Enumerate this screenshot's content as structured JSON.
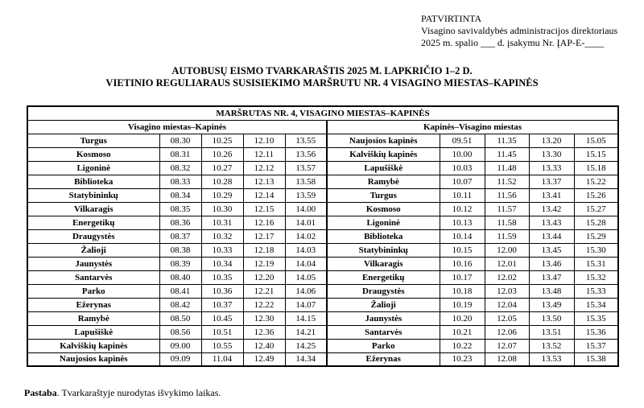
{
  "colors": {
    "text": "#000000",
    "background": "#ffffff",
    "border": "#000000"
  },
  "approval": {
    "line1": "PATVIRTINTA",
    "line2": "Visagino savivaldybės administracijos direktoriaus",
    "line3": "2025 m. spalio ___ d. įsakymu Nr. ĮAP-E-____"
  },
  "title": {
    "line1": "AUTOBUSŲ EISMO TVARKARAŠTIS 2025 M. LAPKRIČIO 1–2 D.",
    "line2": "VIETINIO REGULIARAUS SUSISIEKIMO MARŠRUTU NR. 4 VISAGINO MIESTAS–KAPINĖS"
  },
  "table": {
    "header": "MARŠRUTAS NR. 4, VISAGINO MIESTAS–KAPINĖS",
    "left_direction": "Visagino miestas–Kapinės",
    "right_direction": "Kapinės–Visagino miestas",
    "rows": [
      {
        "left_stop": "Turgus",
        "left_times": [
          "08.30",
          "10.25",
          "12.10",
          "13.55"
        ],
        "right_stop": "Naujosios kapinės",
        "right_times": [
          "09.51",
          "11.35",
          "13.20",
          "15.05"
        ]
      },
      {
        "left_stop": "Kosmoso",
        "left_times": [
          "08.31",
          "10.26",
          "12.11",
          "13.56"
        ],
        "right_stop": "Kalviškių kapinės",
        "right_times": [
          "10.00",
          "11.45",
          "13.30",
          "15.15"
        ]
      },
      {
        "left_stop": "Ligoninė",
        "left_times": [
          "08.32",
          "10.27",
          "12.12",
          "13.57"
        ],
        "right_stop": "Lapušiškė",
        "right_times": [
          "10.03",
          "11.48",
          "13.33",
          "15.18"
        ]
      },
      {
        "left_stop": "Biblioteka",
        "left_times": [
          "08.33",
          "10.28",
          "12.13",
          "13.58"
        ],
        "right_stop": "Ramybė",
        "right_times": [
          "10.07",
          "11.52",
          "13.37",
          "15.22"
        ]
      },
      {
        "left_stop": "Statybininkų",
        "left_times": [
          "08.34",
          "10.29",
          "12.14",
          "13.59"
        ],
        "right_stop": "Turgus",
        "right_times": [
          "10.11",
          "11.56",
          "13.41",
          "15.26"
        ]
      },
      {
        "left_stop": "Vilkaragis",
        "left_times": [
          "08.35",
          "10.30",
          "12.15",
          "14.00"
        ],
        "right_stop": "Kosmoso",
        "right_times": [
          "10.12",
          "11.57",
          "13.42",
          "15.27"
        ]
      },
      {
        "left_stop": "Energetikų",
        "left_times": [
          "08.36",
          "10.31",
          "12.16",
          "14.01"
        ],
        "right_stop": "Ligoninė",
        "right_times": [
          "10.13",
          "11.58",
          "13.43",
          "15.28"
        ]
      },
      {
        "left_stop": "Draugystės",
        "left_times": [
          "08.37",
          "10.32",
          "12.17",
          "14.02"
        ],
        "right_stop": "Biblioteka",
        "right_times": [
          "10.14",
          "11.59",
          "13.44",
          "15.29"
        ]
      },
      {
        "left_stop": "Žalioji",
        "left_times": [
          "08.38",
          "10.33",
          "12.18",
          "14.03"
        ],
        "right_stop": "Statybininkų",
        "right_times": [
          "10.15",
          "12.00",
          "13.45",
          "15.30"
        ]
      },
      {
        "left_stop": "Jaunystės",
        "left_times": [
          "08.39",
          "10.34",
          "12.19",
          "14.04"
        ],
        "right_stop": "Vilkaragis",
        "right_times": [
          "10.16",
          "12.01",
          "13.46",
          "15.31"
        ]
      },
      {
        "left_stop": "Santarvės",
        "left_times": [
          "08.40",
          "10.35",
          "12.20",
          "14.05"
        ],
        "right_stop": "Energetikų",
        "right_times": [
          "10.17",
          "12.02",
          "13.47",
          "15.32"
        ]
      },
      {
        "left_stop": "Parko",
        "left_times": [
          "08.41",
          "10.36",
          "12.21",
          "14.06"
        ],
        "right_stop": "Draugystės",
        "right_times": [
          "10.18",
          "12.03",
          "13.48",
          "15.33"
        ]
      },
      {
        "left_stop": "Ežerynas",
        "left_times": [
          "08.42",
          "10.37",
          "12.22",
          "14.07"
        ],
        "right_stop": "Žalioji",
        "right_times": [
          "10.19",
          "12.04",
          "13.49",
          "15.34"
        ]
      },
      {
        "left_stop": "Ramybė",
        "left_times": [
          "08.50",
          "10.45",
          "12.30",
          "14.15"
        ],
        "right_stop": "Jaunystės",
        "right_times": [
          "10.20",
          "12.05",
          "13.50",
          "15.35"
        ]
      },
      {
        "left_stop": "Lapušiškė",
        "left_times": [
          "08.56",
          "10.51",
          "12.36",
          "14.21"
        ],
        "right_stop": "Santarvės",
        "right_times": [
          "10.21",
          "12.06",
          "13.51",
          "15.36"
        ]
      },
      {
        "left_stop": "Kalviškių kapinės",
        "left_times": [
          "09.00",
          "10.55",
          "12.40",
          "14.25"
        ],
        "right_stop": "Parko",
        "right_times": [
          "10.22",
          "12.07",
          "13.52",
          "15.37"
        ]
      },
      {
        "left_stop": "Naujosios kapinės",
        "left_times": [
          "09.09",
          "11.04",
          "12.49",
          "14.34"
        ],
        "right_stop": "Ežerynas",
        "right_times": [
          "10.23",
          "12.08",
          "13.53",
          "15.38"
        ]
      }
    ]
  },
  "note": {
    "label": "Pastaba",
    "text": ". Tvarkaraštyje nurodytas išvykimo laikas."
  }
}
